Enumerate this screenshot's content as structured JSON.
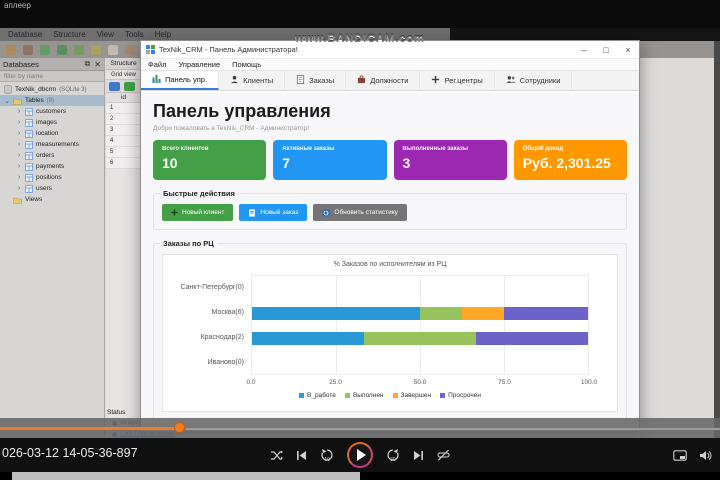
{
  "watermark": "www.BANDICAM.com",
  "desktop": {
    "window_fragment_title": "аплеер"
  },
  "db_app": {
    "menu": [
      "Database",
      "Structure",
      "View",
      "Tools",
      "Help"
    ],
    "databases_panel": {
      "title": "Databases",
      "filter_placeholder": "filter by name",
      "root": "TexNik_dbcrm",
      "root_suffix": "(SQLite 3)",
      "tables_label": "Tables",
      "tables_count": "8",
      "tables": [
        "customers",
        "images",
        "location",
        "measurements",
        "orders",
        "payments",
        "positions",
        "users"
      ],
      "views_label": "Views"
    },
    "structure_panel": {
      "tab": "Structure",
      "view": "Grid view",
      "id_header": "id",
      "rows": [
        "1",
        "2",
        "3",
        "4",
        "5",
        "6"
      ]
    },
    "status": {
      "label": "Status",
      "rows": [
        "загружено",
        "Click here for details"
      ]
    }
  },
  "crm": {
    "window_title": "TexNik_CRM - Панель Администратора!",
    "window_controls": {
      "minimize": "–",
      "maximize": "□",
      "close": "×"
    },
    "menu": [
      "Файл",
      "Управление",
      "Помощь"
    ],
    "tabs": [
      {
        "label": "Панель упр.",
        "icon": "dashboard-chart-icon",
        "active": true
      },
      {
        "label": "Клиенты",
        "icon": "person-icon",
        "active": false
      },
      {
        "label": "Заказы",
        "icon": "document-icon",
        "active": false
      },
      {
        "label": "Должности",
        "icon": "briefcase-icon",
        "active": false
      },
      {
        "label": "Рег.центры",
        "icon": "location-plus-icon",
        "active": false
      },
      {
        "label": "Сотрудники",
        "icon": "people-icon",
        "active": false
      }
    ],
    "heading": "Панель управления",
    "welcome": "Добро пожаловать в TexNik_CRM - Администратор!",
    "stat_cards": [
      {
        "label": "Всего клиентов",
        "value": "10",
        "color": "#43a047"
      },
      {
        "label": "Активные заказы",
        "value": "7",
        "color": "#2196f3"
      },
      {
        "label": "Выполненные заказы",
        "value": "3",
        "color": "#9c27b0"
      },
      {
        "label": "Общий доход",
        "value": "Руб. 2,301.25",
        "color": "#ff9800"
      }
    ],
    "quick_actions": {
      "title": "Быстрые действия",
      "buttons": [
        {
          "label": "Новый клиент",
          "icon": "plus-icon",
          "color": "#43a047"
        },
        {
          "label": "Новый заказ",
          "icon": "document-white-icon",
          "color": "#2196f3"
        },
        {
          "label": "Обновить статистику",
          "icon": "refresh-icon",
          "color": "#757575"
        }
      ]
    },
    "orders_section": {
      "title": "Заказы по РЦ"
    }
  },
  "chart_data": {
    "type": "bar",
    "orientation": "horizontal",
    "stacked": true,
    "title": "% Заказов по исполнителям из РЦ",
    "categories": [
      "Санкт-Петербург(0)",
      "Москва(6)",
      "Краснодар(2)",
      "Иваново(0)"
    ],
    "series": [
      {
        "name": "В_работе",
        "color": "#2899d5",
        "values": [
          0,
          50,
          33.3,
          0
        ]
      },
      {
        "name": "Выполнен",
        "color": "#96c35c",
        "values": [
          0,
          12.5,
          33.3,
          0
        ]
      },
      {
        "name": "Завершен",
        "color": "#ffa827",
        "values": [
          0,
          12.5,
          0,
          0
        ]
      },
      {
        "name": "Просрочен",
        "color": "#6b63c8",
        "values": [
          0,
          25,
          33.4,
          0
        ]
      }
    ],
    "xlim": [
      0,
      100
    ],
    "x_ticks": [
      "0.0",
      "25.0",
      "50.0",
      "75.0",
      "100.0"
    ],
    "grid": true,
    "legend_position": "bottom"
  },
  "player": {
    "timestamp": "026-03-12 14-05-36-897",
    "progress_percent": 25,
    "replay_seconds": "10",
    "forward_seconds": "30"
  }
}
